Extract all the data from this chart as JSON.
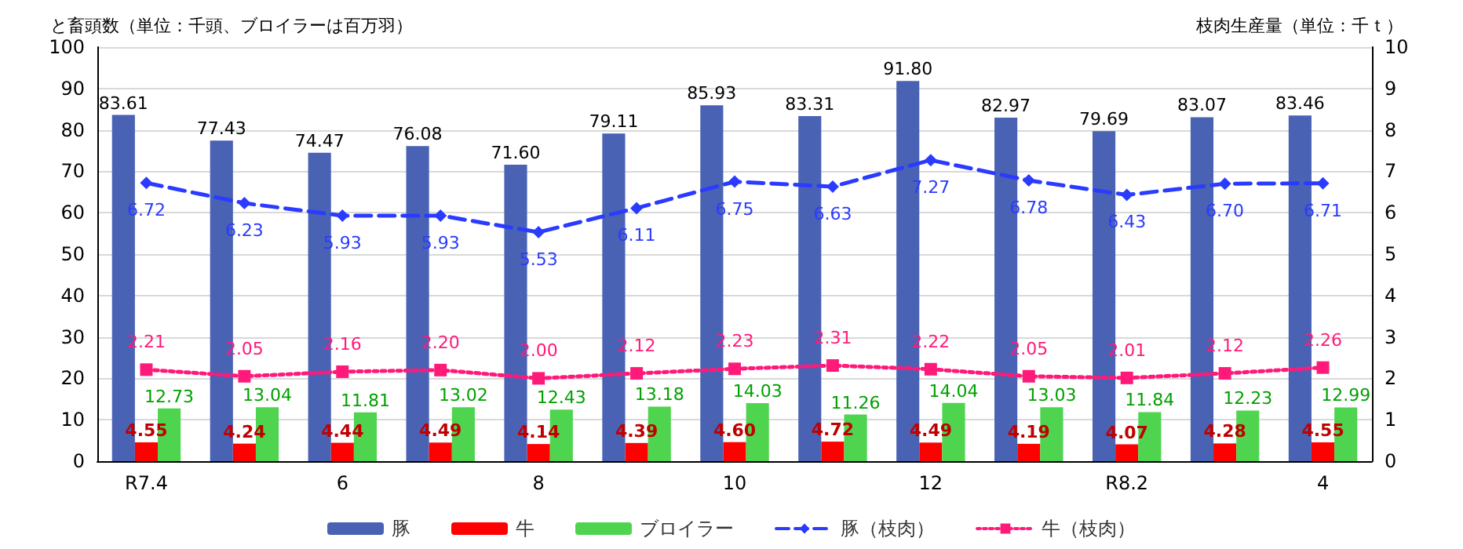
{
  "chart_data": {
    "type": "bar",
    "ylabel": "と畜頭数（単位：千頭、ブロイラーは百万羽）",
    "y2label": "枝肉生産量（単位：千ｔ）",
    "categories": [
      "R7.4",
      null,
      "6",
      null,
      "8",
      null,
      "10",
      null,
      "12",
      null,
      "R8.2",
      null,
      "4"
    ],
    "series": [
      {
        "name": "豚",
        "color": "#4a62b4",
        "values": [
          83.61,
          77.43,
          74.47,
          76.08,
          71.6,
          79.11,
          85.93,
          83.31,
          91.8,
          82.97,
          79.69,
          83.07,
          83.46
        ],
        "value_labels": [
          "83.61",
          "77.43",
          "74.47",
          "76.08",
          "71.60",
          "79.11",
          "85.93",
          "83.31",
          "91.80",
          "82.97",
          "79.69",
          "83.07",
          "83.46"
        ]
      },
      {
        "name": "牛",
        "color": "#ff0000",
        "values": [
          4.55,
          4.24,
          4.44,
          4.49,
          4.14,
          4.39,
          4.6,
          4.72,
          4.49,
          4.19,
          4.07,
          4.28,
          4.55
        ],
        "value_labels": [
          "4.55",
          "4.24",
          "4.44",
          "4.49",
          "4.14",
          "4.39",
          "4.60",
          "4.72",
          "4.49",
          "4.19",
          "4.07",
          "4.28",
          "4.55"
        ]
      },
      {
        "name": "ブロイラー",
        "color": "#4fd44f",
        "values": [
          12.73,
          13.04,
          11.81,
          13.02,
          12.43,
          13.18,
          14.03,
          11.26,
          14.04,
          13.03,
          11.84,
          12.23,
          12.99
        ],
        "value_labels": [
          "12.73",
          "13.04",
          "11.81",
          "13.02",
          "12.43",
          "13.18",
          "14.03",
          "11.26",
          "14.04",
          "13.03",
          "11.84",
          "12.23",
          "12.99"
        ]
      },
      {
        "name": "豚（枝肉）",
        "type": "line",
        "axis": "y2",
        "color": "#2a3bff",
        "marker": "diamond",
        "line_style": "dashed",
        "values": [
          6.72,
          6.23,
          5.93,
          5.93,
          5.53,
          6.11,
          6.75,
          6.63,
          7.27,
          6.78,
          6.43,
          6.7,
          6.71
        ],
        "value_labels": [
          "6.72",
          "6.23",
          "5.93",
          "5.93",
          "5.53",
          "6.11",
          "6.75",
          "6.63",
          "7.27",
          "6.78",
          "6.43",
          "6.70",
          "6.71"
        ]
      },
      {
        "name": "牛（枝肉）",
        "type": "line",
        "axis": "y2",
        "color": "#ff1a7a",
        "marker": "square",
        "line_style": "dotted",
        "values": [
          2.21,
          2.05,
          2.16,
          2.2,
          2.0,
          2.12,
          2.23,
          2.31,
          2.22,
          2.05,
          2.01,
          2.12,
          2.26
        ],
        "value_labels": [
          "2.21",
          "2.05",
          "2.16",
          "2.20",
          "2.00",
          "2.12",
          "2.23",
          "2.31",
          "2.22",
          "2.05",
          "2.01",
          "2.12",
          "2.26"
        ]
      }
    ],
    "ylim": [
      0,
      100
    ],
    "yticks": [
      0,
      10,
      20,
      30,
      40,
      50,
      60,
      70,
      80,
      90,
      100
    ],
    "y2lim": [
      0,
      10
    ],
    "y2ticks": [
      0,
      1,
      2,
      3,
      4,
      5,
      6,
      7,
      8,
      9,
      10
    ],
    "grid": "y",
    "legend": "bottom"
  }
}
